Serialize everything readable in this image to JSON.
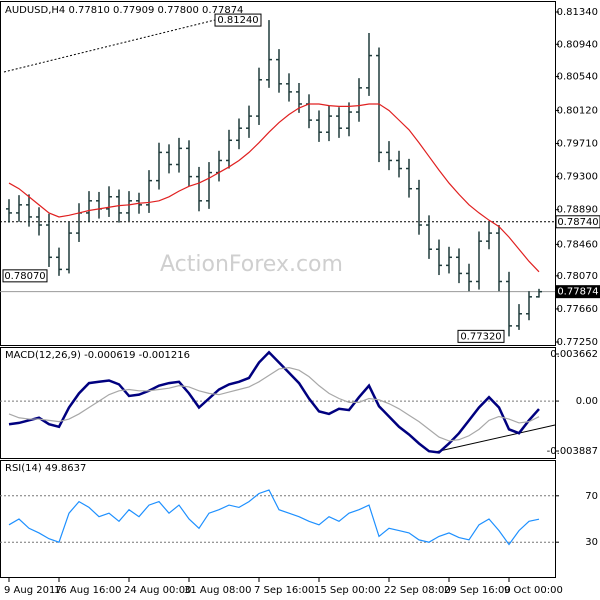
{
  "chart_data": [
    {
      "type": "ohlc",
      "title": "AUDUSD,H4 0.77810 0.77909 0.77800 0.77874",
      "watermark": "ActionForex.com",
      "categories": [
        "9 Aug 2017",
        null,
        null,
        null,
        null,
        "16 Aug 16:00",
        null,
        null,
        null,
        null,
        null,
        null,
        "24 Aug 00:00",
        null,
        null,
        null,
        null,
        null,
        "31 Aug 08:00",
        null,
        null,
        null,
        null,
        null,
        null,
        "7 Sep 16:00",
        null,
        null,
        null,
        null,
        null,
        "15 Sep 00:00",
        null,
        null,
        null,
        null,
        null,
        null,
        "22 Sep 08:00",
        null,
        null,
        null,
        null,
        null,
        "29 Sep 16:00",
        null,
        null,
        null,
        null,
        null,
        "9 Oct 00:00",
        null,
        null,
        null
      ],
      "open": [
        0.789,
        0.7885,
        0.7895,
        0.788,
        0.787,
        0.783,
        0.7815,
        0.786,
        0.7885,
        0.79,
        0.789,
        0.7905,
        0.7885,
        0.79,
        0.7895,
        0.7925,
        0.796,
        0.7945,
        0.7965,
        0.793,
        0.79,
        0.7935,
        0.795,
        0.7975,
        0.799,
        0.8005,
        0.805,
        0.8075,
        0.8045,
        0.8035,
        0.802,
        0.8,
        0.7985,
        0.8005,
        0.799,
        0.801,
        0.804,
        0.808,
        0.796,
        0.795,
        0.794,
        0.7915,
        0.787,
        0.784,
        0.782,
        0.783,
        0.781,
        0.78,
        0.785,
        0.786,
        0.78,
        0.7745,
        0.776,
        0.7781
      ],
      "high": [
        0.7902,
        0.7907,
        0.7908,
        0.7892,
        0.7884,
        0.7842,
        0.7874,
        0.7897,
        0.7912,
        0.7911,
        0.7918,
        0.7914,
        0.7912,
        0.791,
        0.7938,
        0.7972,
        0.797,
        0.7978,
        0.7975,
        0.7942,
        0.7948,
        0.7962,
        0.7988,
        0.8002,
        0.8018,
        0.8065,
        0.8124,
        0.8088,
        0.8058,
        0.8046,
        0.8032,
        0.8012,
        0.8018,
        0.8016,
        0.8022,
        0.8052,
        0.8108,
        0.809,
        0.7974,
        0.7962,
        0.7952,
        0.7926,
        0.7882,
        0.7852,
        0.7843,
        0.7841,
        0.7822,
        0.7862,
        0.7874,
        0.787,
        0.7812,
        0.7772,
        0.7788,
        0.77909
      ],
      "low": [
        0.7873,
        0.7874,
        0.7868,
        0.7857,
        0.7818,
        0.7807,
        0.781,
        0.7849,
        0.7874,
        0.7878,
        0.788,
        0.7873,
        0.7875,
        0.7884,
        0.7885,
        0.7914,
        0.7934,
        0.7935,
        0.7918,
        0.7887,
        0.789,
        0.7924,
        0.794,
        0.7964,
        0.7978,
        0.7994,
        0.804,
        0.8034,
        0.8023,
        0.8009,
        0.799,
        0.7973,
        0.7974,
        0.7978,
        0.798,
        0.7998,
        0.803,
        0.7948,
        0.7938,
        0.7929,
        0.7904,
        0.7858,
        0.7828,
        0.7808,
        0.781,
        0.7798,
        0.7788,
        0.779,
        0.784,
        0.7788,
        0.7732,
        0.774,
        0.7752,
        0.778
      ],
      "close": [
        0.7885,
        0.7895,
        0.788,
        0.787,
        0.783,
        0.7815,
        0.786,
        0.7885,
        0.79,
        0.789,
        0.7905,
        0.7885,
        0.79,
        0.7895,
        0.7925,
        0.796,
        0.7945,
        0.7965,
        0.793,
        0.79,
        0.7935,
        0.795,
        0.7975,
        0.799,
        0.8005,
        0.805,
        0.8075,
        0.8045,
        0.8035,
        0.802,
        0.8,
        0.7985,
        0.8005,
        0.799,
        0.801,
        0.804,
        0.808,
        0.796,
        0.795,
        0.794,
        0.7915,
        0.787,
        0.784,
        0.782,
        0.783,
        0.781,
        0.78,
        0.785,
        0.786,
        0.78,
        0.7745,
        0.776,
        0.7781,
        0.77874
      ],
      "color": "#1f3b3b",
      "series": [
        {
          "color": "#e02020",
          "values": [
            0.7922,
            0.7915,
            0.7905,
            0.7895,
            0.7885,
            0.788,
            0.7882,
            0.7885,
            0.7888,
            0.789,
            0.7892,
            0.7894,
            0.7895,
            0.7897,
            0.7898,
            0.79,
            0.7905,
            0.7912,
            0.7918,
            0.7922,
            0.7928,
            0.7935,
            0.7942,
            0.795,
            0.796,
            0.7972,
            0.7985,
            0.7997,
            0.8007,
            0.8015,
            0.802,
            0.802,
            0.8018,
            0.8017,
            0.8017,
            0.8018,
            0.802,
            0.802,
            0.8012,
            0.8,
            0.7988,
            0.7972,
            0.7955,
            0.7938,
            0.7922,
            0.7908,
            0.7895,
            0.7885,
            0.7876,
            0.7868,
            0.7855,
            0.784,
            0.7825,
            0.7812
          ]
        }
      ],
      "ylim": [
        0.77213,
        0.81464
      ],
      "yticks": [
        {
          "value": 0.8134,
          "label": "0.81340"
        },
        {
          "value": 0.8094,
          "label": "0.80940"
        },
        {
          "value": 0.8054,
          "label": "0.80540"
        },
        {
          "value": 0.8012,
          "label": "0.80120"
        },
        {
          "value": 0.7971,
          "label": "0.79710"
        },
        {
          "value": 0.793,
          "label": "0.79300"
        },
        {
          "value": 0.7889,
          "label": "0.78890"
        },
        {
          "value": 0.7846,
          "label": "0.78460"
        },
        {
          "value": 0.7807,
          "label": "0.78070"
        },
        {
          "value": 0.7766,
          "label": "0.77660"
        },
        {
          "value": 0.7725,
          "label": "0.77250"
        }
      ],
      "annotations": [
        {
          "value": 0.8124,
          "label": "0.81240"
        },
        {
          "value": 0.7874,
          "label": "0.78740"
        },
        {
          "value": 0.7807,
          "label": "0.78070"
        },
        {
          "value": 0.77874,
          "label": "0.77874"
        },
        {
          "value": 0.7732,
          "label": "0.77320"
        }
      ]
    },
    {
      "type": "line",
      "title": "MACD(12,26,9) -0.000619 -0.001216",
      "series": [
        {
          "color": "#00007f",
          "values": [
            -0.0018,
            -0.0017,
            -0.0015,
            -0.0013,
            -0.0018,
            -0.002,
            -0.0005,
            0.0006,
            0.0014,
            0.0015,
            0.0016,
            0.0013,
            0.0004,
            0.0005,
            0.0008,
            0.0012,
            0.0014,
            0.0015,
            0.0006,
            -0.0005,
            0.0002,
            0.0009,
            0.0013,
            0.0015,
            0.0018,
            0.003,
            0.0038,
            0.003,
            0.0022,
            0.0014,
            0.0002,
            -0.0008,
            -0.001,
            -0.0006,
            -0.0007,
            0.0003,
            0.0012,
            -0.0004,
            -0.0012,
            -0.002,
            -0.0026,
            -0.0033,
            -0.0039,
            -0.004,
            -0.0033,
            -0.0025,
            -0.0015,
            -0.0005,
            0.0003,
            -0.0005,
            -0.0022,
            -0.0025,
            -0.0015,
            -0.000619
          ]
        },
        {
          "color": "#a8a8a8",
          "values": [
            -0.001,
            -0.0013,
            -0.0014,
            -0.0014,
            -0.0015,
            -0.0016,
            -0.0014,
            -0.001,
            -0.0005,
            0.0,
            0.0005,
            0.0008,
            0.0009,
            0.0008,
            0.0008,
            0.0009,
            0.001,
            0.0012,
            0.0011,
            0.0008,
            0.0006,
            0.0005,
            0.0007,
            0.0009,
            0.0011,
            0.0015,
            0.002,
            0.0025,
            0.0026,
            0.0024,
            0.0019,
            0.0012,
            0.0006,
            0.0002,
            -0.0001,
            -0.0001,
            0.0002,
            0.0001,
            -0.0002,
            -0.0006,
            -0.0011,
            -0.0016,
            -0.0022,
            -0.0028,
            -0.0031,
            -0.003,
            -0.0027,
            -0.0022,
            -0.0015,
            -0.0012,
            -0.0014,
            -0.0017,
            -0.0016,
            -0.001216
          ]
        }
      ],
      "ylim": [
        -0.00443,
        0.00413
      ],
      "yticks": [
        0.003662,
        {
          "value": 0,
          "label": "0.00"
        },
        -0.003887
      ],
      "zero_line": true
    },
    {
      "type": "line",
      "title": "RSI(14) 49.8637",
      "series": [
        {
          "color": "#1e90ff",
          "values": [
            45,
            50,
            42,
            38,
            33,
            30,
            55,
            65,
            60,
            52,
            55,
            48,
            58,
            52,
            62,
            65,
            55,
            62,
            50,
            42,
            55,
            58,
            62,
            60,
            65,
            72,
            75,
            58,
            55,
            52,
            48,
            45,
            52,
            48,
            55,
            58,
            62,
            35,
            42,
            40,
            38,
            32,
            30,
            35,
            38,
            34,
            32,
            45,
            50,
            40,
            28,
            40,
            48,
            49.8637
          ]
        }
      ],
      "ylim": [
        0,
        100
      ],
      "yticks": [
        30,
        70
      ],
      "grid": true
    }
  ]
}
